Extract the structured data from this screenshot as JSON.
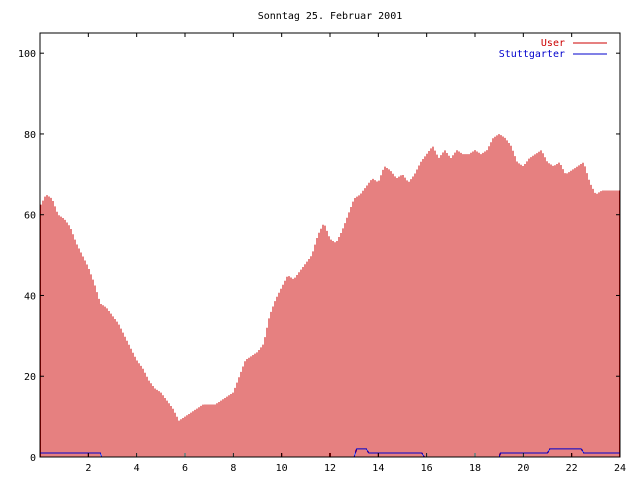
{
  "chart_data": {
    "type": "bar",
    "title": "Sonntag 25. Februar 2001",
    "xlabel": "",
    "ylabel": "",
    "xlim": [
      0,
      24
    ],
    "ylim": [
      0,
      105
    ],
    "grid": false,
    "legend_position": "top-right",
    "x_ticks": [
      2,
      4,
      6,
      8,
      10,
      12,
      14,
      16,
      18,
      20,
      22,
      24
    ],
    "x_tick_labels": [
      "2",
      "4",
      "6",
      "8",
      "10",
      "12",
      "14",
      "16",
      "18",
      "20",
      "22",
      "24"
    ],
    "y_ticks": [
      0,
      20,
      40,
      60,
      80,
      100
    ],
    "y_tick_labels": [
      "0",
      "20",
      "40",
      "60",
      "80",
      "100"
    ],
    "series": [
      {
        "name": "User",
        "color": "#cc0000",
        "style": "impulses",
        "points": [
          [
            0.0,
            62
          ],
          [
            0.25,
            65
          ],
          [
            0.5,
            64
          ],
          [
            0.75,
            60
          ],
          [
            1.0,
            59
          ],
          [
            1.25,
            57
          ],
          [
            1.5,
            53
          ],
          [
            1.75,
            50
          ],
          [
            2.0,
            47
          ],
          [
            2.25,
            43
          ],
          [
            2.5,
            38
          ],
          [
            2.75,
            37
          ],
          [
            3.0,
            35
          ],
          [
            3.25,
            33
          ],
          [
            3.5,
            30
          ],
          [
            3.75,
            27
          ],
          [
            4.0,
            24
          ],
          [
            4.25,
            22
          ],
          [
            4.5,
            19
          ],
          [
            4.75,
            17
          ],
          [
            5.0,
            16
          ],
          [
            5.25,
            14
          ],
          [
            5.5,
            12
          ],
          [
            5.75,
            9
          ],
          [
            6.0,
            10
          ],
          [
            6.25,
            11
          ],
          [
            6.5,
            12
          ],
          [
            6.75,
            13
          ],
          [
            7.0,
            13
          ],
          [
            7.25,
            13
          ],
          [
            7.5,
            14
          ],
          [
            7.75,
            15
          ],
          [
            8.0,
            16
          ],
          [
            8.25,
            20
          ],
          [
            8.5,
            24
          ],
          [
            8.75,
            25
          ],
          [
            9.0,
            26
          ],
          [
            9.25,
            28
          ],
          [
            9.5,
            35
          ],
          [
            9.75,
            39
          ],
          [
            10.0,
            42
          ],
          [
            10.25,
            45
          ],
          [
            10.5,
            44
          ],
          [
            10.75,
            46
          ],
          [
            11.0,
            48
          ],
          [
            11.25,
            50
          ],
          [
            11.5,
            55
          ],
          [
            11.75,
            58
          ],
          [
            12.0,
            54
          ],
          [
            12.25,
            53
          ],
          [
            12.5,
            56
          ],
          [
            12.75,
            60
          ],
          [
            13.0,
            64
          ],
          [
            13.25,
            65
          ],
          [
            13.5,
            67
          ],
          [
            13.75,
            69
          ],
          [
            14.0,
            68
          ],
          [
            14.25,
            72
          ],
          [
            14.5,
            71
          ],
          [
            14.75,
            69
          ],
          [
            15.0,
            70
          ],
          [
            15.25,
            68
          ],
          [
            15.5,
            70
          ],
          [
            15.75,
            73
          ],
          [
            16.0,
            75
          ],
          [
            16.25,
            77
          ],
          [
            16.5,
            74
          ],
          [
            16.75,
            76
          ],
          [
            17.0,
            74
          ],
          [
            17.25,
            76
          ],
          [
            17.5,
            75
          ],
          [
            17.75,
            75
          ],
          [
            18.0,
            76
          ],
          [
            18.25,
            75
          ],
          [
            18.5,
            76
          ],
          [
            18.75,
            79
          ],
          [
            19.0,
            80
          ],
          [
            19.25,
            79
          ],
          [
            19.5,
            77
          ],
          [
            19.75,
            73
          ],
          [
            20.0,
            72
          ],
          [
            20.25,
            74
          ],
          [
            20.5,
            75
          ],
          [
            20.75,
            76
          ],
          [
            21.0,
            73
          ],
          [
            21.25,
            72
          ],
          [
            21.5,
            73
          ],
          [
            21.75,
            70
          ],
          [
            22.0,
            71
          ],
          [
            22.25,
            72
          ],
          [
            22.5,
            73
          ],
          [
            22.75,
            68
          ],
          [
            23.0,
            65
          ],
          [
            23.25,
            66
          ],
          [
            23.5,
            66
          ],
          [
            23.75,
            66
          ]
        ]
      },
      {
        "name": "Stuttgarter",
        "color": "#0000cc",
        "style": "line",
        "points": [
          [
            0.0,
            1
          ],
          [
            2.5,
            1
          ],
          [
            2.55,
            0
          ],
          [
            13.0,
            0
          ],
          [
            13.1,
            2
          ],
          [
            13.5,
            2
          ],
          [
            13.6,
            1
          ],
          [
            15.8,
            1
          ],
          [
            15.9,
            0
          ],
          [
            19.0,
            0
          ],
          [
            19.05,
            1
          ],
          [
            21.0,
            1
          ],
          [
            21.1,
            2
          ],
          [
            22.4,
            2
          ],
          [
            22.5,
            1
          ],
          [
            24.0,
            1
          ]
        ]
      }
    ]
  }
}
